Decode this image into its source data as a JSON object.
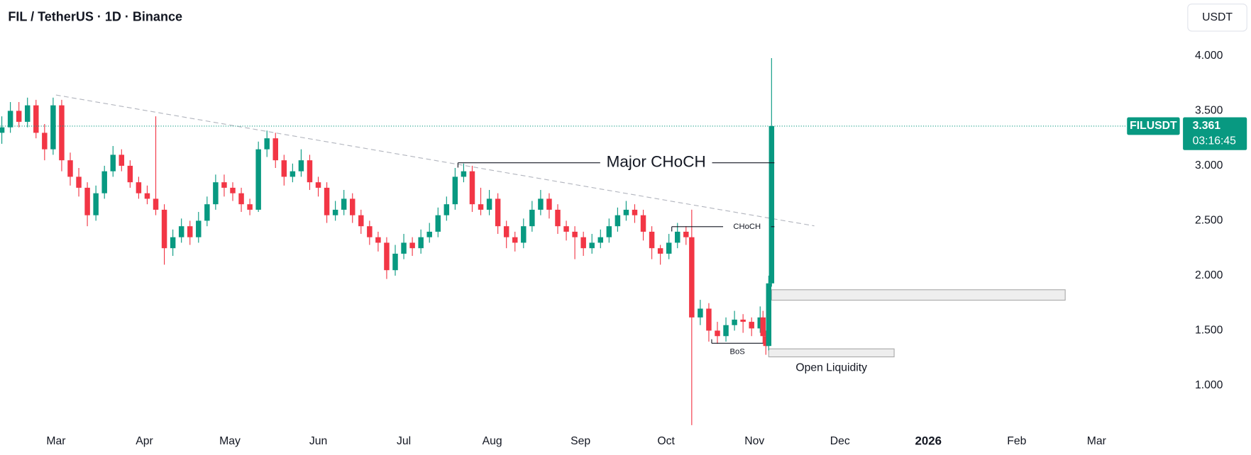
{
  "chart_data": {
    "type": "candlestick",
    "title": "FIL / TetherUS · 1D · Binance",
    "currency": "USDT",
    "symbol": "FILUSDT",
    "last_price": 3.361,
    "countdown": "03:16:45",
    "up_color": "#089981",
    "down_color": "#f23645",
    "xlim": [
      -19.6,
      389.7
    ],
    "xticks": [
      {
        "value": 0,
        "label": "Mar"
      },
      {
        "value": 31,
        "label": "Apr"
      },
      {
        "value": 61,
        "label": "May"
      },
      {
        "value": 92,
        "label": "Jun"
      },
      {
        "value": 122,
        "label": "Jul"
      },
      {
        "value": 153,
        "label": "Aug"
      },
      {
        "value": 184,
        "label": "Sep"
      },
      {
        "value": 214,
        "label": "Oct"
      },
      {
        "value": 245,
        "label": "Nov"
      },
      {
        "value": 275,
        "label": "Dec"
      },
      {
        "value": 306,
        "label": "2026"
      },
      {
        "value": 337,
        "label": "Feb"
      },
      {
        "value": 365,
        "label": "Mar"
      }
    ],
    "ylim": [
      0.586,
      4.218
    ],
    "yticks": [
      {
        "value": 1,
        "label": "1.000"
      },
      {
        "value": 1.5,
        "label": "1.500"
      },
      {
        "value": 2,
        "label": "2.000"
      },
      {
        "value": 2.5,
        "label": "2.500"
      },
      {
        "value": 3,
        "label": "3.000"
      },
      {
        "value": 3.5,
        "label": "3.500"
      },
      {
        "value": 4,
        "label": "4.000"
      }
    ],
    "x": [
      -19,
      -16,
      -13,
      -10,
      -7,
      -4,
      -1,
      2,
      5,
      8,
      11,
      14,
      17,
      20,
      23,
      26,
      29,
      32,
      35,
      38,
      41,
      44,
      47,
      50,
      53,
      56,
      59,
      62,
      65,
      68,
      71,
      74,
      77,
      80,
      83,
      86,
      89,
      92,
      95,
      98,
      101,
      104,
      107,
      110,
      113,
      116,
      119,
      122,
      125,
      128,
      131,
      134,
      137,
      140,
      143,
      146,
      149,
      152,
      155,
      158,
      161,
      164,
      167,
      170,
      173,
      176,
      179,
      182,
      185,
      188,
      191,
      194,
      197,
      200,
      203,
      206,
      209,
      212,
      215,
      218,
      221,
      223,
      226,
      229,
      232,
      235,
      238,
      241,
      244,
      247,
      248,
      249,
      250,
      251
    ],
    "open": [
      3.3,
      3.35,
      3.5,
      3.4,
      3.55,
      3.3,
      3.15,
      3.55,
      3.05,
      2.9,
      2.8,
      2.55,
      2.75,
      2.95,
      3.1,
      3.0,
      2.85,
      2.75,
      2.7,
      2.6,
      2.25,
      2.35,
      2.45,
      2.35,
      2.5,
      2.65,
      2.85,
      2.8,
      2.75,
      2.65,
      2.6,
      3.15,
      3.25,
      3.05,
      2.9,
      2.95,
      3.05,
      2.85,
      2.8,
      2.55,
      2.6,
      2.7,
      2.55,
      2.45,
      2.35,
      2.3,
      2.05,
      2.2,
      2.3,
      2.25,
      2.35,
      2.4,
      2.55,
      2.65,
      2.9,
      2.95,
      2.65,
      2.6,
      2.7,
      2.45,
      2.35,
      2.3,
      2.45,
      2.6,
      2.7,
      2.6,
      2.45,
      2.4,
      2.35,
      2.25,
      2.3,
      2.35,
      2.45,
      2.55,
      2.6,
      2.55,
      2.4,
      2.25,
      2.2,
      2.3,
      2.4,
      2.35,
      1.62,
      1.7,
      1.5,
      1.45,
      1.55,
      1.6,
      1.58,
      1.52,
      1.62,
      1.45,
      1.36,
      1.93
    ],
    "high": [
      3.45,
      3.58,
      3.58,
      3.62,
      3.6,
      3.38,
      3.62,
      3.6,
      3.12,
      2.98,
      2.85,
      2.82,
      3.0,
      3.18,
      3.15,
      3.05,
      2.9,
      2.82,
      3.45,
      2.65,
      2.42,
      2.52,
      2.5,
      2.58,
      2.72,
      2.92,
      2.92,
      2.85,
      2.8,
      2.7,
      3.22,
      3.32,
      3.3,
      3.1,
      3.02,
      3.15,
      3.1,
      2.9,
      2.85,
      2.68,
      2.78,
      2.75,
      2.6,
      2.5,
      2.4,
      2.35,
      2.28,
      2.38,
      2.35,
      2.42,
      2.48,
      2.62,
      2.72,
      2.98,
      3.02,
      3.0,
      2.8,
      2.78,
      2.75,
      2.5,
      2.4,
      2.52,
      2.68,
      2.78,
      2.75,
      2.65,
      2.5,
      2.45,
      2.4,
      2.38,
      2.42,
      2.52,
      2.62,
      2.68,
      2.65,
      2.6,
      2.45,
      2.28,
      2.38,
      2.48,
      2.45,
      2.6,
      1.78,
      1.75,
      1.58,
      1.62,
      1.68,
      1.65,
      1.62,
      1.72,
      1.68,
      1.5,
      2.0,
      3.98
    ],
    "low": [
      3.2,
      3.3,
      3.35,
      3.35,
      3.25,
      3.05,
      3.1,
      2.95,
      2.82,
      2.72,
      2.45,
      2.5,
      2.7,
      2.9,
      2.95,
      2.8,
      2.7,
      2.65,
      2.55,
      2.1,
      2.18,
      2.3,
      2.28,
      2.3,
      2.45,
      2.6,
      2.72,
      2.68,
      2.58,
      2.55,
      2.58,
      3.08,
      2.98,
      2.82,
      2.85,
      2.9,
      2.78,
      2.72,
      2.48,
      2.5,
      2.55,
      2.48,
      2.38,
      2.28,
      2.22,
      1.97,
      2.0,
      2.15,
      2.18,
      2.2,
      2.3,
      2.35,
      2.5,
      2.6,
      2.85,
      2.58,
      2.55,
      2.55,
      2.38,
      2.25,
      2.22,
      2.25,
      2.4,
      2.55,
      2.52,
      2.38,
      2.32,
      2.15,
      2.18,
      2.2,
      2.25,
      2.3,
      2.4,
      2.5,
      2.48,
      2.32,
      2.15,
      2.1,
      2.15,
      2.25,
      2.28,
      0.64,
      1.55,
      1.4,
      1.38,
      1.4,
      1.5,
      1.48,
      1.45,
      1.48,
      1.38,
      1.28,
      1.32,
      1.9
    ],
    "close": [
      3.35,
      3.5,
      3.4,
      3.55,
      3.3,
      3.15,
      3.55,
      3.05,
      2.9,
      2.8,
      2.55,
      2.75,
      2.95,
      3.1,
      3.0,
      2.85,
      2.75,
      2.7,
      2.6,
      2.25,
      2.35,
      2.45,
      2.35,
      2.5,
      2.65,
      2.85,
      2.8,
      2.75,
      2.65,
      2.6,
      3.15,
      3.25,
      3.05,
      2.9,
      2.95,
      3.05,
      2.85,
      2.8,
      2.55,
      2.6,
      2.7,
      2.55,
      2.45,
      2.35,
      2.3,
      2.05,
      2.2,
      2.3,
      2.25,
      2.35,
      2.4,
      2.55,
      2.65,
      2.9,
      2.95,
      2.65,
      2.6,
      2.7,
      2.45,
      2.35,
      2.3,
      2.45,
      2.6,
      2.7,
      2.6,
      2.45,
      2.4,
      2.35,
      2.25,
      2.3,
      2.35,
      2.45,
      2.55,
      2.6,
      2.55,
      2.4,
      2.25,
      2.2,
      2.3,
      2.4,
      2.35,
      1.62,
      1.7,
      1.5,
      1.45,
      1.55,
      1.6,
      1.58,
      1.52,
      1.62,
      1.45,
      1.36,
      1.93,
      3.361
    ],
    "trendline": {
      "x": [
        0,
        266
      ],
      "y": [
        3.644,
        2.453
      ]
    },
    "levels": [
      {
        "label": "Major CHoCH",
        "y": 3.027,
        "x": [
          141,
          252
        ]
      },
      {
        "label": "CHoCH",
        "y": 2.446,
        "x": [
          216,
          252
        ]
      },
      {
        "label": "BoS",
        "y": 1.385,
        "x": [
          230,
          248
        ]
      }
    ],
    "zones": [
      {
        "x": [
          251,
          354
        ],
        "y": [
          1.777,
          1.872
        ]
      },
      {
        "label": "Open Liquidity",
        "x": [
          250,
          294
        ],
        "y": [
          1.261,
          1.334
        ]
      }
    ]
  }
}
